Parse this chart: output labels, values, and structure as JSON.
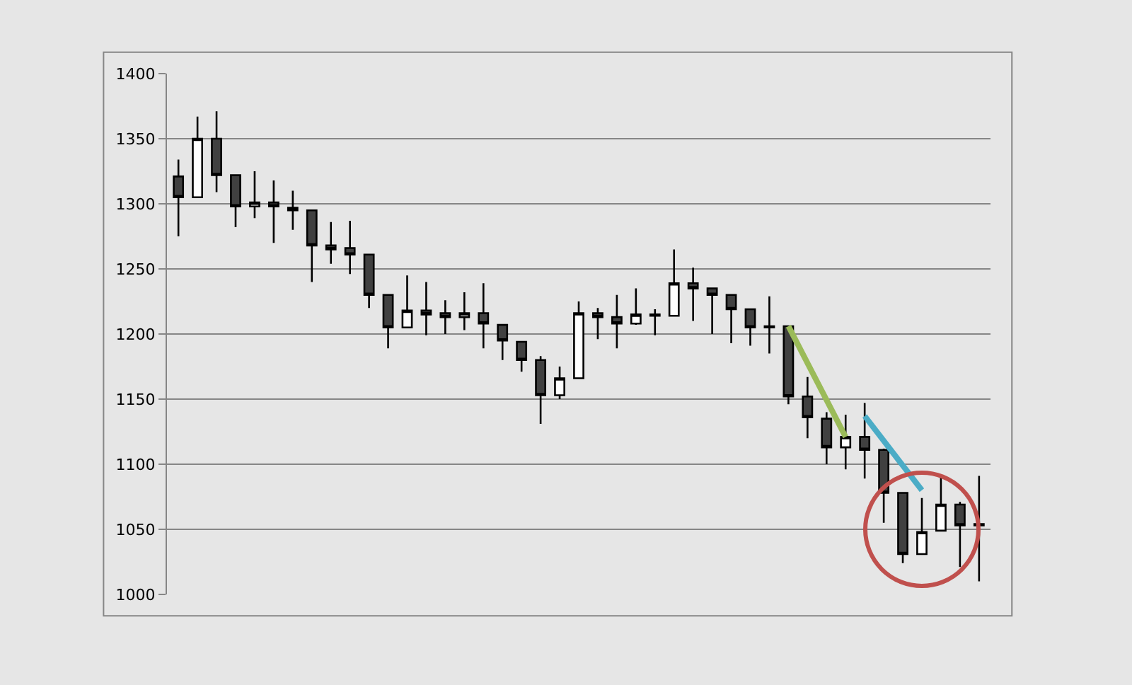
{
  "chart_data": {
    "type": "candlestick",
    "categories": [
      null,
      null,
      null,
      null,
      null,
      null,
      null,
      null,
      null,
      null,
      null,
      null,
      null,
      null,
      null,
      null,
      null,
      null,
      null,
      null,
      null,
      null,
      null,
      null,
      null,
      null,
      null,
      null,
      null,
      null,
      null,
      null,
      null,
      null,
      null,
      null,
      null,
      null,
      null,
      null,
      null,
      null,
      null
    ],
    "ohlc": [
      [
        1321,
        1334,
        1275,
        1305
      ],
      [
        1305,
        1367,
        1305,
        1350
      ],
      [
        1350,
        1371,
        1309,
        1322
      ],
      [
        1322,
        1322,
        1282,
        1298
      ],
      [
        1298,
        1325,
        1289,
        1301
      ],
      [
        1301,
        1318,
        1270,
        1298
      ],
      [
        1297,
        1310,
        1280,
        1295
      ],
      [
        1295,
        1295,
        1240,
        1268
      ],
      [
        1268,
        1286,
        1254,
        1265
      ],
      [
        1266,
        1287,
        1246,
        1261
      ],
      [
        1261,
        1261,
        1220,
        1230
      ],
      [
        1230,
        1230,
        1189,
        1205
      ],
      [
        1205,
        1245,
        1205,
        1218
      ],
      [
        1218,
        1240,
        1199,
        1215
      ],
      [
        1216,
        1226,
        1200,
        1213
      ],
      [
        1213,
        1232,
        1203,
        1216
      ],
      [
        1216,
        1239,
        1189,
        1208
      ],
      [
        1207,
        1207,
        1180,
        1195
      ],
      [
        1194,
        1194,
        1171,
        1180
      ],
      [
        1180,
        1183,
        1131,
        1153
      ],
      [
        1153,
        1175,
        1150,
        1166
      ],
      [
        1166,
        1225,
        1166,
        1216
      ],
      [
        1216,
        1220,
        1196,
        1213
      ],
      [
        1213,
        1230,
        1189,
        1208
      ],
      [
        1208,
        1235,
        1207,
        1215
      ],
      [
        1215,
        1219,
        1199,
        1214
      ],
      [
        1214,
        1265,
        1214,
        1239
      ],
      [
        1239,
        1251,
        1210,
        1235
      ],
      [
        1235,
        1235,
        1200,
        1230
      ],
      [
        1230,
        1230,
        1193,
        1219
      ],
      [
        1219,
        1219,
        1191,
        1205
      ],
      [
        1206,
        1229,
        1185,
        1205
      ],
      [
        1206,
        1206,
        1146,
        1152
      ],
      [
        1152,
        1167,
        1120,
        1136
      ],
      [
        1135,
        1140,
        1100,
        1113
      ],
      [
        1113,
        1138,
        1096,
        1121
      ],
      [
        1121,
        1147,
        1089,
        1111
      ],
      [
        1111,
        1112,
        1055,
        1078
      ],
      [
        1078,
        1078,
        1024,
        1031
      ],
      [
        1031,
        1074,
        1031,
        1048
      ],
      [
        1049,
        1090,
        1049,
        1069
      ],
      [
        1069,
        1071,
        1021,
        1053
      ],
      [
        1054,
        1091,
        1010,
        1053
      ]
    ],
    "series": [
      {
        "type": "line",
        "color": "#9bbb59",
        "values": [
          null,
          null,
          null,
          null,
          null,
          null,
          null,
          null,
          null,
          null,
          null,
          null,
          null,
          null,
          null,
          null,
          null,
          null,
          null,
          null,
          null,
          null,
          null,
          null,
          null,
          null,
          null,
          null,
          null,
          null,
          null,
          null,
          1206,
          null,
          null,
          1121,
          null,
          null,
          null,
          null,
          null,
          null,
          null
        ]
      },
      {
        "type": "line",
        "color": "#4bacc6",
        "values": [
          null,
          null,
          null,
          null,
          null,
          null,
          null,
          null,
          null,
          null,
          null,
          null,
          null,
          null,
          null,
          null,
          null,
          null,
          null,
          null,
          null,
          null,
          null,
          null,
          null,
          null,
          null,
          null,
          null,
          null,
          null,
          null,
          null,
          null,
          null,
          null,
          1137,
          null,
          null,
          1080,
          null,
          null,
          null
        ]
      },
      {
        "type": "scatter",
        "marker": "circle",
        "color": "#c0504d",
        "values": [
          null,
          null,
          null,
          null,
          null,
          null,
          null,
          null,
          null,
          null,
          null,
          null,
          null,
          null,
          null,
          null,
          null,
          null,
          null,
          null,
          null,
          null,
          null,
          null,
          null,
          null,
          null,
          null,
          null,
          null,
          null,
          null,
          null,
          null,
          null,
          null,
          null,
          null,
          null,
          1050,
          null,
          null,
          null
        ]
      }
    ],
    "ylim": [
      1000,
      1400
    ],
    "yticks": [
      1000,
      1050,
      1100,
      1150,
      1200,
      1250,
      1300,
      1350,
      1400
    ],
    "grid": "y",
    "tick_labels": "y"
  }
}
